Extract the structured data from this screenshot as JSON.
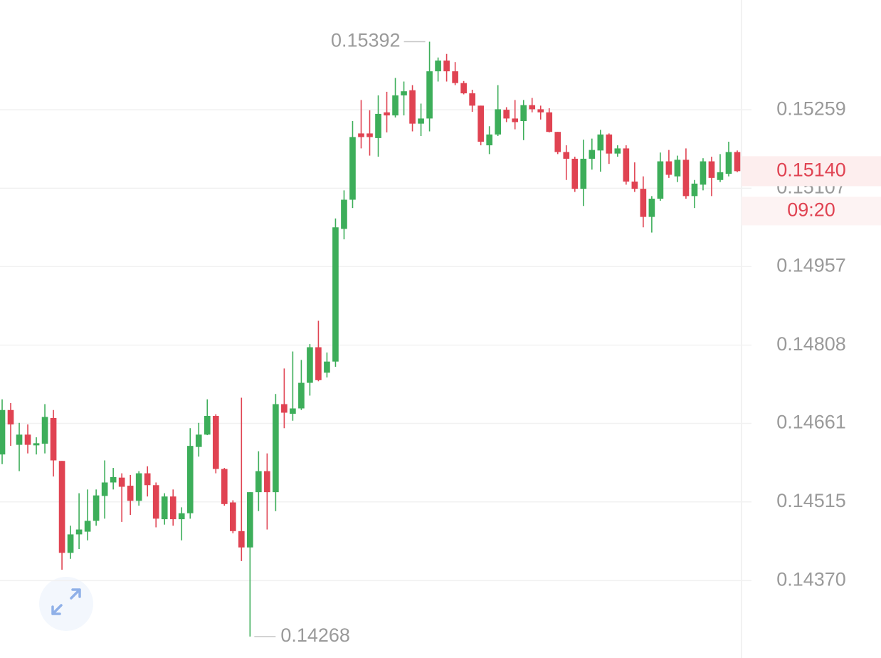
{
  "chart_data": {
    "type": "candlestick",
    "log_scale": true,
    "grid": true,
    "up_color": "#3dae5a",
    "down_color": "#e04352",
    "ylim": [
      0.14229,
      0.15474
    ],
    "yticks": [
      0.15259,
      0.15107,
      0.14957,
      0.14808,
      0.14661,
      0.14515,
      {
        "value": 0.1437,
        "label": "0.14370"
      }
    ],
    "last_price": {
      "value": 0.1514,
      "label": "0.15140"
    },
    "countdown": "09:20",
    "open": [
      0.14603,
      0.14686,
      0.14621,
      0.1464,
      0.1462,
      0.14623,
      0.14671,
      0.14591,
      0.14421,
      0.14455,
      0.1446,
      0.1448,
      0.14526,
      0.14551,
      0.1456,
      0.14545,
      0.14517,
      0.14568,
      0.14546,
      0.14483,
      0.14525,
      0.14483,
      0.14494,
      0.14617,
      0.1464,
      0.14675,
      0.14576,
      0.14514,
      0.14461,
      0.14431,
      0.14533,
      0.14572,
      0.14533,
      0.14697,
      0.14679,
      0.14689,
      0.14737,
      0.14804,
      0.14756,
      0.14777,
      0.15029,
      0.15085,
      0.15213,
      0.15213,
      0.15204,
      0.15254,
      0.15248,
      0.15287,
      0.15297,
      0.15232,
      0.15242,
      0.15334,
      0.15355,
      0.15334,
      0.15311,
      0.15291,
      0.15267,
      0.1519,
      0.15211,
      0.15259,
      0.15242,
      0.15237,
      0.15268,
      0.1526,
      0.15254,
      0.15216,
      0.15177,
      0.15164,
      0.15106,
      0.15164,
      0.1518,
      0.15211,
      0.15174,
      0.15184,
      0.1512,
      0.15106,
      0.15052,
      0.15087,
      0.15159,
      0.1513,
      0.15162,
      0.15092,
      0.15114,
      0.15159,
      0.15123,
      0.15135,
      0.15177
    ],
    "high": [
      0.14706,
      0.14699,
      0.14662,
      0.14659,
      0.14635,
      0.14697,
      0.14686,
      0.14591,
      0.14471,
      0.14531,
      0.14538,
      0.14538,
      0.14592,
      0.14578,
      0.14568,
      0.14565,
      0.14572,
      0.14581,
      0.14551,
      0.14531,
      0.14538,
      0.14505,
      0.14652,
      0.14662,
      0.14706,
      0.14678,
      0.14578,
      0.14518,
      0.14709,
      0.14533,
      0.14609,
      0.14605,
      0.14716,
      0.14764,
      0.14796,
      0.1478,
      0.1481,
      0.14854,
      0.14794,
      0.15049,
      0.15103,
      0.15237,
      0.15278,
      0.15258,
      0.15287,
      0.15294,
      0.15321,
      0.15314,
      0.15307,
      0.15271,
      0.15392,
      0.15361,
      0.15368,
      0.15352,
      0.15315,
      0.15298,
      0.15267,
      0.15227,
      0.15307,
      0.15264,
      0.15278,
      0.15278,
      0.15282,
      0.15267,
      0.15262,
      0.15216,
      0.1519,
      0.15168,
      0.15201,
      0.15203,
      0.1522,
      0.15213,
      0.1519,
      0.1519,
      0.15157,
      0.1513,
      0.15092,
      0.15176,
      0.15181,
      0.1517,
      0.15184,
      0.15123,
      0.15165,
      0.15168,
      0.15173,
      0.15197,
      0.1518
    ],
    "low": [
      0.14585,
      0.14619,
      0.14572,
      0.14605,
      0.14603,
      0.14605,
      0.14562,
      0.1439,
      0.1441,
      0.14428,
      0.14444,
      0.14471,
      0.14484,
      0.14538,
      0.14478,
      0.14491,
      0.14508,
      0.14525,
      0.14468,
      0.14473,
      0.14471,
      0.14444,
      0.14484,
      0.14599,
      0.14639,
      0.14568,
      0.14508,
      0.14457,
      0.14406,
      0.14268,
      0.14498,
      0.14464,
      0.14498,
      0.14652,
      0.14666,
      0.14686,
      0.14713,
      0.1474,
      0.14747,
      0.14767,
      0.15009,
      0.15069,
      0.15184,
      0.1517,
      0.15168,
      0.15215,
      0.15244,
      0.15248,
      0.15217,
      0.15208,
      0.15217,
      0.15314,
      0.15314,
      0.15307,
      0.15289,
      0.15255,
      0.1519,
      0.15173,
      0.15208,
      0.15235,
      0.15221,
      0.152,
      0.15254,
      0.1524,
      0.15215,
      0.15173,
      0.15123,
      0.151,
      0.15073,
      0.15143,
      0.15139,
      0.15154,
      0.15168,
      0.15114,
      0.151,
      0.15032,
      0.15022,
      0.15083,
      0.15127,
      0.15119,
      0.15087,
      0.15069,
      0.15103,
      0.15092,
      0.15119,
      0.1513,
      0.15138
    ],
    "close": [
      0.14686,
      0.14659,
      0.1464,
      0.14621,
      0.14624,
      0.14673,
      0.14592,
      0.14421,
      0.14455,
      0.14464,
      0.1448,
      0.14527,
      0.14551,
      0.14561,
      0.14543,
      0.14517,
      0.14568,
      0.14546,
      0.14484,
      0.14525,
      0.14483,
      0.14494,
      0.14619,
      0.1464,
      0.14675,
      0.14576,
      0.14511,
      0.14461,
      0.14431,
      0.14533,
      0.14572,
      0.14533,
      0.14697,
      0.14681,
      0.14689,
      0.14737,
      0.14804,
      0.14742,
      0.14777,
      0.15032,
      0.15085,
      0.15206,
      0.15206,
      0.15206,
      0.15251,
      0.15248,
      0.15287,
      0.15295,
      0.15232,
      0.15242,
      0.15334,
      0.15355,
      0.15334,
      0.15311,
      0.15291,
      0.15267,
      0.15197,
      0.15211,
      0.1526,
      0.15242,
      0.15235,
      0.15268,
      0.1526,
      0.15254,
      0.15216,
      0.15177,
      0.15164,
      0.15106,
      0.15164,
      0.15181,
      0.15211,
      0.15174,
      0.15184,
      0.1512,
      0.15106,
      0.15052,
      0.15087,
      0.15159,
      0.15133,
      0.15162,
      0.15092,
      0.15116,
      0.15159,
      0.15127,
      0.15138,
      0.15177,
      0.1514
    ]
  }
}
